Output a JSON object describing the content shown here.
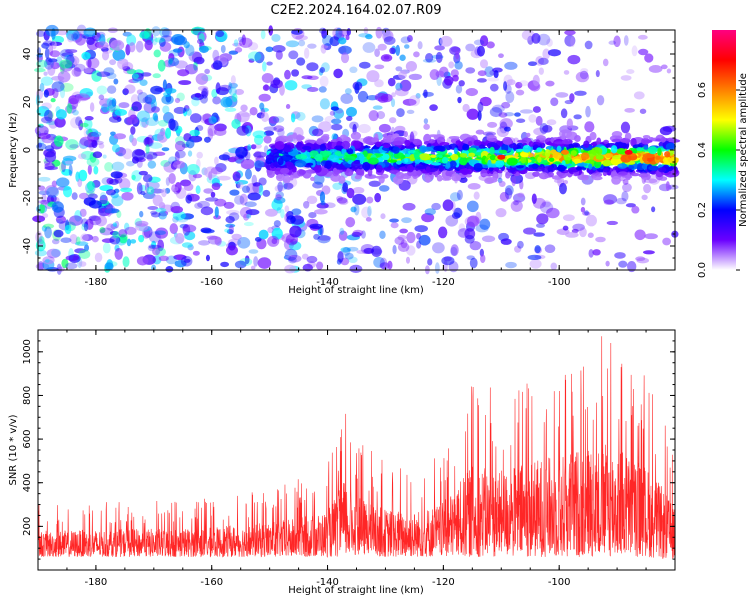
{
  "title": "C2E2.2024.164.02.07.R09",
  "chart_data": [
    {
      "type": "heatmap",
      "xlabel": "Height of straight line (km)",
      "ylabel": "Frequency (Hz)",
      "xlim": [
        -190,
        -80
      ],
      "ylim": [
        -50,
        50
      ],
      "x_ticks": [
        -180,
        -160,
        -140,
        -120,
        -100
      ],
      "y_ticks": [
        -40,
        -20,
        0,
        20,
        40
      ],
      "colorbar": {
        "label": "Normalized spectral amplitude",
        "range": [
          0,
          0.8
        ],
        "ticks": [
          0.0,
          0.2,
          0.4,
          0.6
        ],
        "colormap": [
          "#ffffff",
          "#6a00ff",
          "#0000ff",
          "#00ffff",
          "#00ff00",
          "#ffff00",
          "#ff8000",
          "#ff0000",
          "#ff0080"
        ]
      },
      "features": {
        "band_center_hz": -3,
        "band_start_km": -150,
        "band_amplitude_peak": 0.75
      }
    },
    {
      "type": "line",
      "xlabel": "Height of straight line (km)",
      "ylabel": "SNR (10 * v/v)",
      "xlim": [
        -190,
        -80
      ],
      "ylim": [
        0,
        1100
      ],
      "x_ticks": [
        -180,
        -160,
        -140,
        -120,
        -100
      ],
      "y_ticks": [
        200,
        400,
        600,
        800,
        1000
      ],
      "series": [
        {
          "color": "#ff0000",
          "envelope_x": [
            -190,
            -180,
            -170,
            -160,
            -150,
            -145,
            -140,
            -137,
            -135,
            -130,
            -125,
            -120,
            -115,
            -110,
            -105,
            -100,
            -95,
            -90,
            -85,
            -82,
            -80
          ],
          "envelope_max": [
            300,
            310,
            320,
            330,
            380,
            420,
            480,
            780,
            600,
            500,
            480,
            560,
            900,
            850,
            950,
            1000,
            1100,
            1100,
            900,
            700,
            500
          ],
          "envelope_min": [
            60,
            60,
            60,
            60,
            60,
            60,
            60,
            60,
            70,
            60,
            60,
            60,
            60,
            60,
            60,
            60,
            60,
            60,
            60,
            50,
            50
          ]
        }
      ]
    }
  ]
}
